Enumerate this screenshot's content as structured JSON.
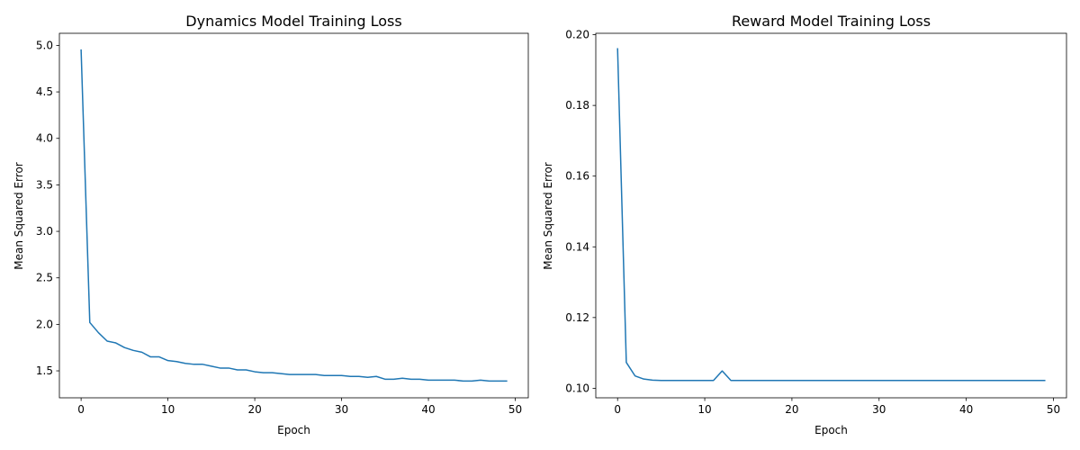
{
  "chart_data": [
    {
      "type": "line",
      "title": "Dynamics Model Training Loss",
      "xlabel": "Epoch",
      "ylabel": "Mean Squared Error",
      "xlim": [
        -2.5,
        51.5
      ],
      "ylim": [
        1.21,
        5.13
      ],
      "xticks": [
        0,
        10,
        20,
        30,
        40,
        50
      ],
      "xtick_labels": [
        "0",
        "10",
        "20",
        "30",
        "40",
        "50"
      ],
      "yticks": [
        1.5,
        2.0,
        2.5,
        3.0,
        3.5,
        4.0,
        4.5,
        5.0
      ],
      "ytick_labels": [
        "1.5",
        "2.0",
        "2.5",
        "3.0",
        "3.5",
        "4.0",
        "4.5",
        "5.0"
      ],
      "grid": false,
      "series_color": "#1f77b4",
      "x": [
        0,
        1,
        2,
        3,
        4,
        5,
        6,
        7,
        8,
        9,
        10,
        11,
        12,
        13,
        14,
        15,
        16,
        17,
        18,
        19,
        20,
        21,
        22,
        23,
        24,
        25,
        26,
        27,
        28,
        29,
        30,
        31,
        32,
        33,
        34,
        35,
        36,
        37,
        38,
        39,
        40,
        41,
        42,
        43,
        44,
        45,
        46,
        47,
        48,
        49
      ],
      "y": [
        4.95,
        2.02,
        1.91,
        1.82,
        1.8,
        1.75,
        1.72,
        1.7,
        1.65,
        1.65,
        1.61,
        1.6,
        1.58,
        1.57,
        1.57,
        1.55,
        1.53,
        1.53,
        1.51,
        1.51,
        1.49,
        1.48,
        1.48,
        1.47,
        1.46,
        1.46,
        1.46,
        1.46,
        1.45,
        1.45,
        1.45,
        1.44,
        1.44,
        1.43,
        1.44,
        1.41,
        1.41,
        1.42,
        1.41,
        1.41,
        1.4,
        1.4,
        1.4,
        1.4,
        1.39,
        1.39,
        1.4,
        1.39,
        1.39,
        1.39
      ]
    },
    {
      "type": "line",
      "title": "Reward Model Training Loss",
      "xlabel": "Epoch",
      "ylabel": "Mean Squared Error",
      "xlim": [
        -2.5,
        51.5
      ],
      "ylim": [
        0.0973,
        0.2004
      ],
      "xticks": [
        0,
        10,
        20,
        30,
        40,
        50
      ],
      "xtick_labels": [
        "0",
        "10",
        "20",
        "30",
        "40",
        "50"
      ],
      "yticks": [
        0.1,
        0.12,
        0.14,
        0.16,
        0.18,
        0.2
      ],
      "ytick_labels": [
        "0.10",
        "0.12",
        "0.14",
        "0.16",
        "0.18",
        "0.20"
      ],
      "grid": false,
      "series_color": "#1f77b4",
      "x": [
        0,
        1,
        2,
        3,
        4,
        5,
        6,
        7,
        8,
        9,
        10,
        11,
        12,
        13,
        14,
        15,
        16,
        17,
        18,
        19,
        20,
        21,
        22,
        23,
        24,
        25,
        26,
        27,
        28,
        29,
        30,
        31,
        32,
        33,
        34,
        35,
        36,
        37,
        38,
        39,
        40,
        41,
        42,
        43,
        44,
        45,
        46,
        47,
        48,
        49
      ],
      "y": [
        0.196,
        0.1073,
        0.1035,
        0.1026,
        0.1023,
        0.1022,
        0.1022,
        0.1022,
        0.1022,
        0.1022,
        0.1022,
        0.1022,
        0.1049,
        0.1022,
        0.1022,
        0.1022,
        0.1022,
        0.1022,
        0.1022,
        0.1022,
        0.1022,
        0.1022,
        0.1022,
        0.1022,
        0.1022,
        0.1022,
        0.1022,
        0.1022,
        0.1022,
        0.1022,
        0.1022,
        0.1022,
        0.1022,
        0.1022,
        0.1022,
        0.1022,
        0.1022,
        0.1022,
        0.1022,
        0.1022,
        0.1022,
        0.1022,
        0.1022,
        0.1022,
        0.1022,
        0.1022,
        0.1022,
        0.1022,
        0.1022,
        0.1022
      ]
    }
  ]
}
